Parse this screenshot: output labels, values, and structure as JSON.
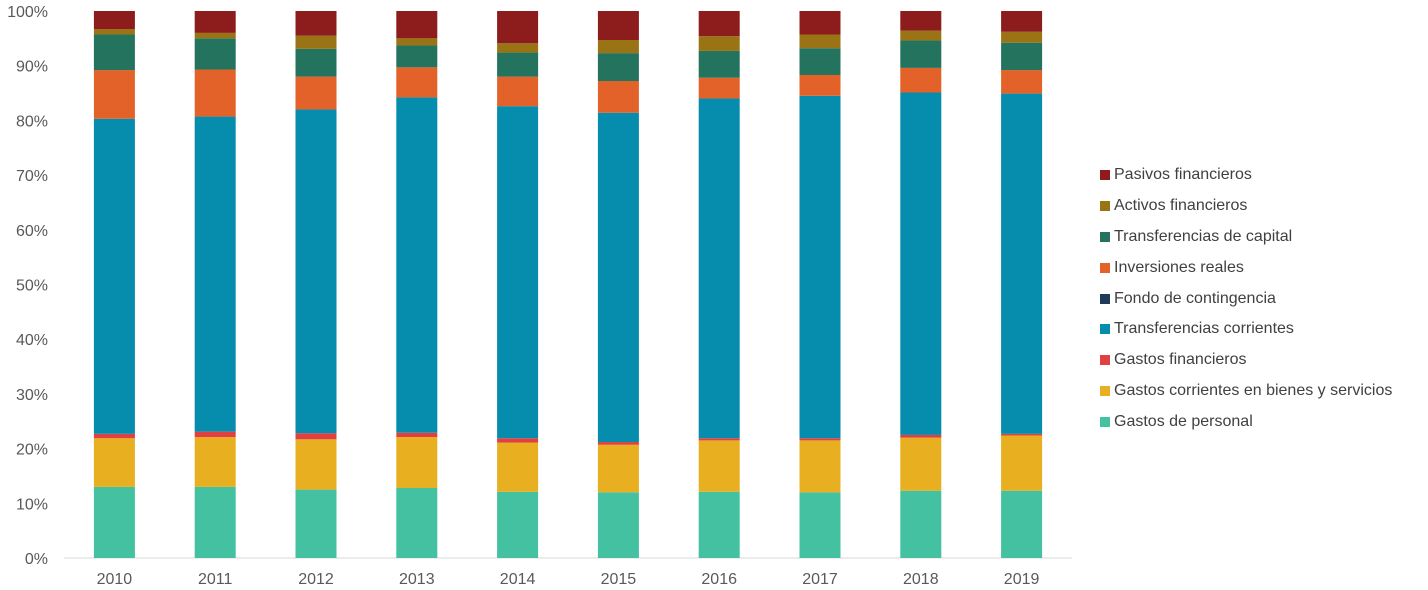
{
  "chart_data": {
    "type": "bar",
    "stacked": true,
    "percent_stacked": true,
    "categories": [
      "2010",
      "2011",
      "2012",
      "2013",
      "2014",
      "2015",
      "2016",
      "2017",
      "2018",
      "2019"
    ],
    "y_ticks": [
      "0%",
      "10%",
      "20%",
      "30%",
      "40%",
      "50%",
      "60%",
      "70%",
      "80%",
      "90%",
      "100%"
    ],
    "ylim": [
      0,
      100
    ],
    "grid": false,
    "legend_position": "right",
    "series": [
      {
        "name": "Gastos de personal",
        "color": "#43C1A0",
        "values": [
          13.0,
          13.0,
          12.5,
          12.8,
          12.1,
          12.0,
          12.1,
          12.0,
          12.3,
          12.3
        ]
      },
      {
        "name": "Gastos corrientes en bienes y servicios",
        "color": "#E8B021",
        "values": [
          8.9,
          9.1,
          9.2,
          9.3,
          9.0,
          8.7,
          9.4,
          9.5,
          9.7,
          10.1
        ]
      },
      {
        "name": "Gastos financieros",
        "color": "#E04040",
        "values": [
          0.8,
          1.0,
          1.1,
          0.8,
          0.8,
          0.5,
          0.4,
          0.4,
          0.5,
          0.3
        ]
      },
      {
        "name": "Transferencias corrientes",
        "color": "#068DAE",
        "values": [
          57.6,
          57.6,
          59.2,
          61.3,
          60.7,
          60.2,
          62.1,
          62.6,
          62.6,
          62.2
        ]
      },
      {
        "name": "Fondo de contingencia",
        "color": "#1F3A5A",
        "values": [
          0,
          0,
          0,
          0,
          0,
          0,
          0,
          0,
          0,
          0
        ]
      },
      {
        "name": "Inversiones reales",
        "color": "#E2622A",
        "values": [
          8.9,
          8.6,
          6.0,
          5.5,
          5.4,
          5.8,
          3.8,
          3.8,
          4.5,
          4.3
        ]
      },
      {
        "name": "Transferencias de capital",
        "color": "#23735E",
        "values": [
          6.5,
          5.7,
          5.1,
          4.0,
          4.4,
          5.1,
          4.9,
          4.9,
          5.0,
          5.0
        ]
      },
      {
        "name": "Activos financieros",
        "color": "#9A7414",
        "values": [
          1.0,
          1.0,
          2.4,
          1.3,
          1.7,
          2.4,
          2.7,
          2.5,
          1.8,
          2.0
        ]
      },
      {
        "name": "Pasivos financieros",
        "color": "#8D1C1C",
        "values": [
          3.3,
          4.0,
          4.5,
          5.0,
          5.9,
          5.3,
          4.6,
          4.3,
          3.6,
          3.8
        ]
      }
    ],
    "axis_color": "#D9D9D9",
    "text_color": "#595959"
  }
}
